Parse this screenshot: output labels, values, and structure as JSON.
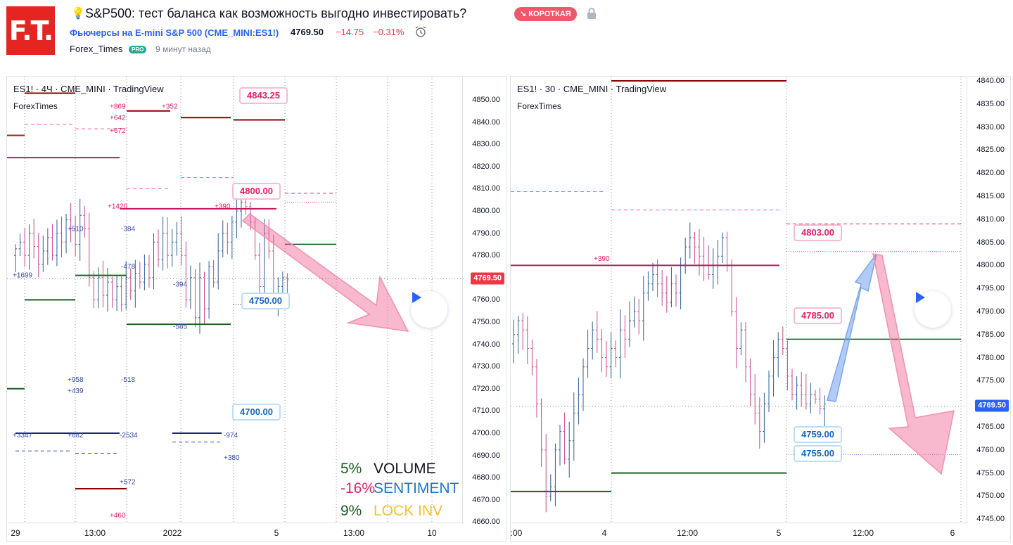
{
  "header": {
    "logo_text": "F.T.",
    "idea_icon": "lightbulb-icon",
    "idea_title": "S&P500: тест баланса как возможность выгодно инвестировать?",
    "badge": "↘ КОРОТКАЯ",
    "symbol_link": "Фьючерсы на E-mini S&P 500 (CME_MINI:ES1!)",
    "price": "4769.50",
    "change": "−14.75",
    "change_pct": "−0.31%",
    "author": "Forex_Times",
    "pro_badge": "PRO",
    "time_ago": "9 минут назад",
    "colors": {
      "logo": "#e52521",
      "badge": "#f05769",
      "link": "#2962ff",
      "negative": "#f23645",
      "pro": "#22ab94"
    }
  },
  "left_chart": {
    "legend": "ES1! · 4Ч · CME_MINI · TradingView",
    "author": "ForexTimes",
    "price_ticks": [
      "4850.00",
      "4840.00",
      "4830.00",
      "4820.00",
      "4810.00",
      "4800.00",
      "4790.00",
      "4780.00",
      "4770.00",
      "4760.00",
      "4750.00",
      "4740.00",
      "4730.00",
      "4720.00",
      "4710.00",
      "4700.00",
      "4690.00",
      "4680.00",
      "4670.00",
      "4660.00"
    ],
    "time_ticks": [
      "29",
      "13:00",
      "2022",
      "5",
      "13:00",
      "10"
    ],
    "last_price": "4769.50",
    "callouts": {
      "c1": "4843.25",
      "c2": "4800.00",
      "c3": "4750.00",
      "c4": "4700.00"
    },
    "level_labels": [
      "+869",
      "+642",
      "+352",
      "+672",
      "+1420",
      "+390",
      "+510",
      "-384",
      "+1699",
      "-478",
      "-394",
      "-585",
      "+958",
      "+439",
      "-518",
      "+3347",
      "+682",
      "-2534",
      "-974",
      "+380",
      "+572",
      "+460"
    ],
    "stats": [
      {
        "value": "5%",
        "label": "VOLUME",
        "value_color": "#1b5e20",
        "label_color": "#131722"
      },
      {
        "value": "-16%",
        "label": "SENTIMENT",
        "value_color": "#e91e63",
        "label_color": "#1976d2"
      },
      {
        "value": "9%",
        "label": "LOCK INV",
        "value_color": "#1b5e20",
        "label_color": "#f9c02b"
      }
    ],
    "play_icon": "play-icon"
  },
  "right_chart": {
    "legend": "ES1! · 30 · CME_MINI · TradingView",
    "author": "ForexTimes",
    "price_ticks": [
      "4840.00",
      "4835.00",
      "4830.00",
      "4825.00",
      "4820.00",
      "4815.00",
      "4810.00",
      "4805.00",
      "4800.00",
      "4795.00",
      "4790.00",
      "4785.00",
      "4780.00",
      "4775.00",
      "4770.00",
      "4765.00",
      "4760.00",
      "4755.00",
      "4750.00",
      "4745.00"
    ],
    "time_ticks": [
      ":00",
      "4",
      "12:00",
      "5",
      "12:00",
      "6"
    ],
    "last_price": "4769.50",
    "callouts": {
      "c1": "4803.00",
      "c2": "4785.00",
      "c3": "4759.00",
      "c4": "4755.00"
    },
    "level_label": "+390",
    "play_icon": "play-icon"
  }
}
